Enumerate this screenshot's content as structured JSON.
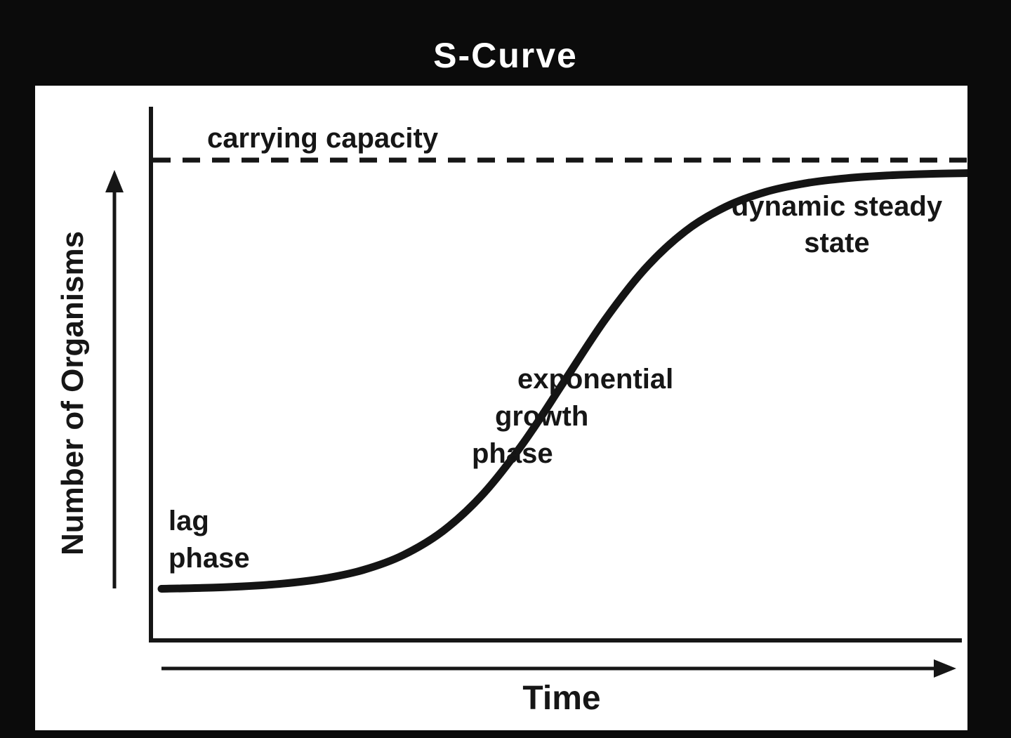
{
  "title": "S-Curve",
  "chart_data": {
    "type": "line",
    "title": "S-Curve",
    "xlabel": "Time",
    "ylabel": "Number of Organisms",
    "x": [
      0,
      5,
      10,
      15,
      20,
      25,
      30,
      35,
      40,
      45,
      50,
      55,
      60,
      65,
      70,
      75,
      80,
      85,
      90,
      95,
      100
    ],
    "y": [
      0.25,
      0.45,
      0.82,
      1.48,
      2.66,
      4.74,
      8.32,
      14.18,
      23.15,
      35.43,
      50,
      64.57,
      76.85,
      85.84,
      91.68,
      95.26,
      97.34,
      98.52,
      99.18,
      99.55,
      99.75
    ],
    "ylim": [
      0,
      105
    ],
    "xlim": [
      0,
      100
    ],
    "grid": false,
    "legend": "none",
    "annotations": [
      {
        "label": "carrying capacity",
        "value": 100,
        "style": "dashed-horizontal-line"
      },
      {
        "label": "lag phase",
        "region": "start-of-curve"
      },
      {
        "label": "exponential growth phase",
        "region": "middle-of-curve"
      },
      {
        "label": "dynamic steady state",
        "region": "end-of-curve"
      }
    ],
    "colors": {
      "curve": "#141414",
      "frame": "#0b0b0b",
      "plot_background": "#ffffff",
      "title_text": "#ffffff"
    }
  },
  "labels": {
    "carrying_capacity": "carrying capacity",
    "lag_line1": "lag",
    "lag_line2": "phase",
    "exp_line1": "exponential",
    "exp_line2": "growth",
    "exp_line3": "phase",
    "steady_line1": "dynamic steady",
    "steady_line2": "state",
    "time": "Time",
    "organisms": "Number of Organisms"
  }
}
